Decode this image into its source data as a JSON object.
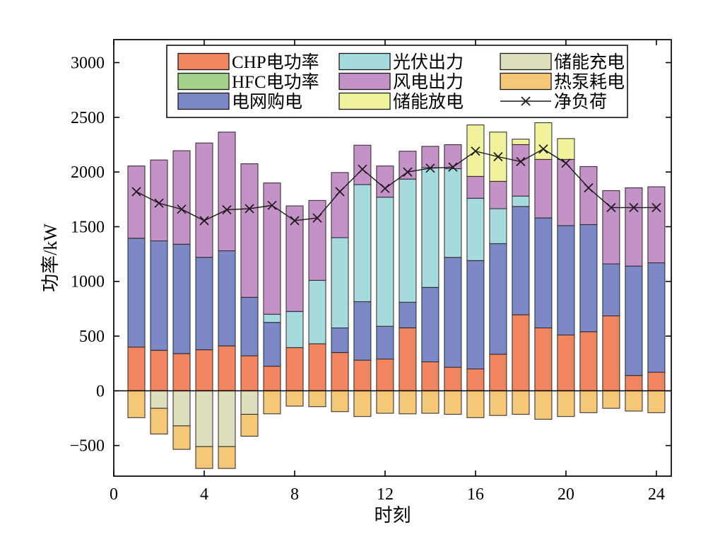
{
  "figure": {
    "background": "#ffffff",
    "axis_color": "#000000",
    "bar_edge_color": "#262626"
  },
  "chart_data": {
    "type": "bar",
    "subtype": "stacked-bar-with-line-overlay",
    "title": "",
    "xlabel": "时刻",
    "ylabel": "功率/kW",
    "grid": false,
    "legend_position": "inside-top",
    "xlim": [
      0,
      24.66
    ],
    "ylim": [
      -780,
      3210
    ],
    "xticks": [
      0,
      4,
      8,
      12,
      16,
      20,
      24
    ],
    "yticks": [
      -500,
      0,
      500,
      1000,
      1500,
      2000,
      2500,
      3000
    ],
    "categories": [
      1,
      2,
      3,
      4,
      5,
      6,
      7,
      8,
      9,
      10,
      11,
      12,
      13,
      14,
      15,
      16,
      17,
      18,
      19,
      20,
      21,
      22,
      23,
      24
    ],
    "series": [
      {
        "name": "CHP电功率",
        "color": "#F0855F",
        "stack": "positive",
        "values": [
          400,
          370,
          340,
          375,
          410,
          320,
          225,
          395,
          430,
          350,
          280,
          290,
          575,
          265,
          215,
          200,
          335,
          695,
          575,
          510,
          540,
          685,
          140,
          170
        ]
      },
      {
        "name": "HFC电功率",
        "color": "#A3D189",
        "stack": "positive",
        "values": [
          0,
          0,
          0,
          0,
          0,
          0,
          0,
          0,
          0,
          0,
          0,
          0,
          0,
          0,
          0,
          0,
          0,
          0,
          0,
          0,
          0,
          0,
          0,
          0
        ]
      },
      {
        "name": "电网购电",
        "color": "#7D88C6",
        "stack": "positive",
        "values": [
          995,
          1000,
          1000,
          845,
          870,
          535,
          400,
          0,
          0,
          225,
          535,
          300,
          235,
          680,
          1005,
          990,
          1010,
          990,
          1005,
          1000,
          980,
          475,
          1000,
          1000
        ]
      },
      {
        "name": "光伏出力",
        "color": "#A5DBDD",
        "stack": "positive",
        "values": [
          0,
          0,
          0,
          0,
          0,
          0,
          75,
          330,
          580,
          825,
          1070,
          1180,
          1125,
          1095,
          810,
          570,
          320,
          95,
          0,
          0,
          0,
          0,
          0,
          0
        ]
      },
      {
        "name": "风电出力",
        "color": "#C592C8",
        "stack": "positive",
        "values": [
          660,
          740,
          855,
          1045,
          1085,
          1220,
          1200,
          965,
          730,
          595,
          360,
          285,
          255,
          195,
          220,
          200,
          250,
          470,
          535,
          605,
          530,
          670,
          715,
          695
        ]
      },
      {
        "name": "储能放电",
        "color": "#F0F29C",
        "stack": "positive",
        "values": [
          0,
          0,
          0,
          0,
          0,
          0,
          0,
          0,
          0,
          0,
          0,
          0,
          0,
          0,
          0,
          470,
          450,
          50,
          335,
          190,
          0,
          0,
          0,
          0
        ]
      },
      {
        "name": "储能充电",
        "color": "#DEDDBC",
        "stack": "negative",
        "values": [
          0,
          -160,
          -320,
          -510,
          -510,
          -215,
          0,
          0,
          0,
          0,
          0,
          0,
          0,
          0,
          0,
          0,
          0,
          0,
          0,
          0,
          0,
          0,
          0,
          0
        ]
      },
      {
        "name": "热泵耗电",
        "color": "#F5C878",
        "stack": "negative",
        "values": [
          -245,
          -235,
          -215,
          -200,
          -200,
          -200,
          -210,
          -140,
          -145,
          -190,
          -235,
          -205,
          -210,
          -205,
          -215,
          -245,
          -225,
          -215,
          -260,
          -235,
          -200,
          -160,
          -185,
          -200
        ]
      }
    ],
    "line_series": [
      {
        "name": "净负荷",
        "color": "#1A1A1A",
        "marker": "x",
        "values": [
          1820,
          1715,
          1660,
          1555,
          1655,
          1665,
          1695,
          1555,
          1580,
          1820,
          2025,
          1850,
          2000,
          2035,
          2045,
          2190,
          2140,
          2095,
          2210,
          2080,
          1855,
          1675,
          1675,
          1675
        ]
      }
    ],
    "legend_columns": [
      [
        "CHP电功率",
        "HFC电功率",
        "电网购电"
      ],
      [
        "光伏出力",
        "风电出力",
        "储能放电"
      ],
      [
        "储能充电",
        "热泵耗电",
        "净负荷"
      ]
    ]
  }
}
